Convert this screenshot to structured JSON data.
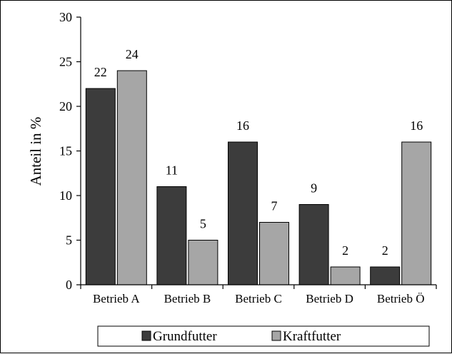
{
  "chart_data": {
    "type": "bar",
    "title": "",
    "xlabel": "",
    "ylabel": "Anteil in %",
    "ylim": [
      0,
      30
    ],
    "yticks": [
      0,
      5,
      10,
      15,
      20,
      25,
      30
    ],
    "categories": [
      "Betrieb A",
      "Betrieb B",
      "Betrieb C",
      "Betrieb D",
      "Betrieb Ö"
    ],
    "series": [
      {
        "name": "Grundfutter",
        "color": "#3c3c3c",
        "values": [
          22,
          11,
          16,
          9,
          2
        ]
      },
      {
        "name": "Kraftfutter",
        "color": "#a6a6a6",
        "values": [
          24,
          5,
          7,
          2,
          16
        ]
      }
    ],
    "grid": false,
    "legend_position": "bottom",
    "data_labels": true
  }
}
